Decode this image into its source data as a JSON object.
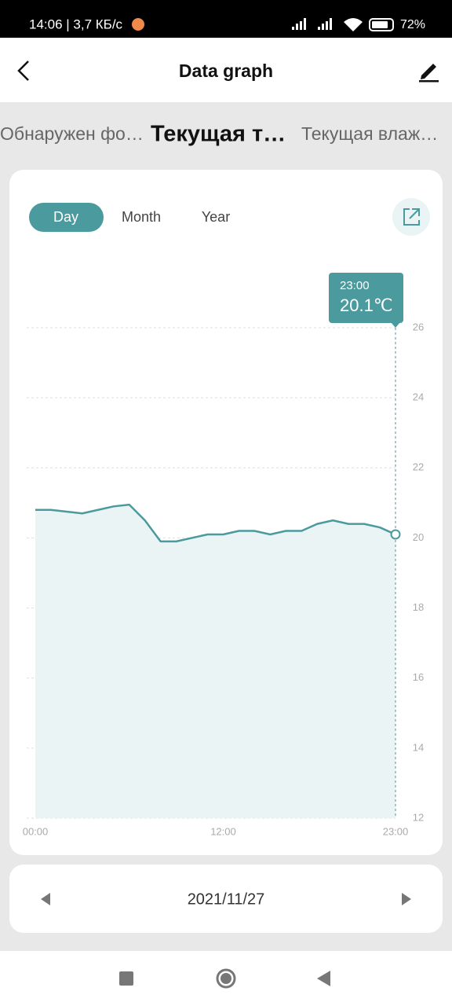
{
  "status_bar": {
    "time": "14:06 | 3,7 КБ/с",
    "battery": "72%"
  },
  "header": {
    "title": "Data graph"
  },
  "tabs": [
    "Обнаружен фо…",
    "Текущая т…",
    "Текущая влаж…"
  ],
  "range_tabs": [
    "Day",
    "Month",
    "Year"
  ],
  "tooltip": {
    "time": "23:00",
    "value": "20.1℃"
  },
  "chart_data": {
    "type": "area",
    "color": "#4a9a9e",
    "fill": "#eaf4f4",
    "grid": true,
    "x": [
      0,
      1,
      2,
      3,
      4,
      5,
      6,
      7,
      8,
      9,
      10,
      11,
      12,
      13,
      14,
      15,
      16,
      17,
      18,
      19,
      20,
      21,
      22,
      23
    ],
    "values": [
      20.8,
      20.8,
      20.75,
      20.7,
      20.8,
      20.9,
      20.95,
      20.5,
      19.9,
      19.9,
      20.0,
      20.1,
      20.1,
      20.2,
      20.2,
      20.1,
      20.2,
      20.2,
      20.4,
      20.5,
      20.4,
      20.4,
      20.3,
      20.1
    ],
    "xlim": [
      0,
      23
    ],
    "xticks": [
      {
        "value": 0,
        "label": "00:00"
      },
      {
        "value": 12,
        "label": "12:00"
      },
      {
        "value": 23,
        "label": "23:00"
      }
    ],
    "ylim": [
      12,
      26
    ],
    "yticks": [
      12,
      14,
      16,
      18,
      20,
      22,
      24,
      26
    ]
  },
  "date_nav": {
    "date": "2021/11/27"
  }
}
